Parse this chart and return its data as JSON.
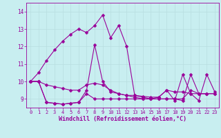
{
  "xlabel": "Windchill (Refroidissement éolien,°C)",
  "xlim": [
    -0.5,
    23.5
  ],
  "ylim": [
    8.5,
    14.5
  ],
  "yticks": [
    9,
    10,
    11,
    12,
    13,
    14
  ],
  "xticks": [
    0,
    1,
    2,
    3,
    4,
    5,
    6,
    7,
    8,
    9,
    10,
    11,
    12,
    13,
    14,
    15,
    16,
    17,
    18,
    19,
    20,
    21,
    22,
    23
  ],
  "bg_color": "#c8eef0",
  "line_color": "#990099",
  "grid_color": "#b8dde0",
  "series": [
    {
      "x": [
        0,
        1,
        2,
        3,
        4,
        5,
        6,
        7,
        8,
        9,
        10,
        11,
        12,
        13,
        14,
        15,
        16,
        17,
        18,
        19,
        20,
        21,
        22
      ],
      "y": [
        10.0,
        10.5,
        11.2,
        11.8,
        12.3,
        12.7,
        13.0,
        12.8,
        13.2,
        13.8,
        12.5,
        13.2,
        12.0,
        9.2,
        9.1,
        9.0,
        9.1,
        9.5,
        8.9,
        10.4,
        9.3,
        9.3,
        9.3
      ]
    },
    {
      "x": [
        0,
        1,
        2,
        3,
        4,
        5,
        6,
        7,
        8,
        9,
        10,
        11,
        12,
        13,
        14,
        15,
        16,
        17,
        18,
        19,
        20,
        21,
        22,
        23
      ],
      "y": [
        10.0,
        10.0,
        9.8,
        9.7,
        9.6,
        9.5,
        9.5,
        9.8,
        9.9,
        9.8,
        9.5,
        9.3,
        9.2,
        9.2,
        9.15,
        9.1,
        9.1,
        9.5,
        9.4,
        9.4,
        9.3,
        8.9,
        10.4,
        9.4
      ]
    },
    {
      "x": [
        0,
        1,
        2,
        3,
        4,
        5,
        6,
        7,
        8,
        9,
        10,
        11,
        12,
        13,
        14,
        15,
        16,
        17,
        18,
        19,
        20,
        21,
        22,
        23
      ],
      "y": [
        10.0,
        10.0,
        8.8,
        8.75,
        8.7,
        8.75,
        8.8,
        9.3,
        9.0,
        9.0,
        9.0,
        9.0,
        9.0,
        9.0,
        9.0,
        9.0,
        9.0,
        9.0,
        9.0,
        8.9,
        10.4,
        9.3,
        9.3,
        9.3
      ]
    },
    {
      "x": [
        0,
        1,
        2,
        3,
        4,
        5,
        6,
        7,
        8,
        9,
        10,
        11,
        12,
        13,
        14,
        15,
        16,
        17,
        18,
        19,
        20,
        21,
        22,
        23
      ],
      "y": [
        10.0,
        10.0,
        8.8,
        8.75,
        8.7,
        8.75,
        8.8,
        9.5,
        12.1,
        10.0,
        9.4,
        9.3,
        9.2,
        9.1,
        9.0,
        9.0,
        9.0,
        9.0,
        9.0,
        9.0,
        9.5,
        9.3,
        9.3,
        9.3
      ]
    }
  ],
  "marker_size": 2.5,
  "line_width": 0.8,
  "tick_fontsize": 5.5,
  "xlabel_fontsize": 6.0
}
